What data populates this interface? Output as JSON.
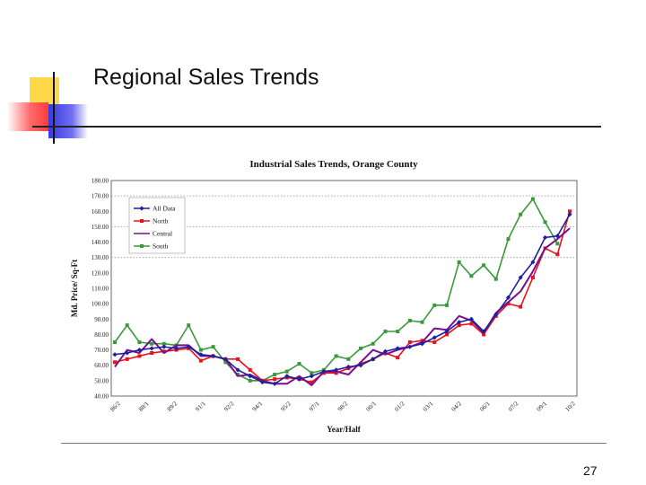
{
  "slide": {
    "title": "Regional Sales Trends",
    "page_number": "27"
  },
  "chart_data": {
    "type": "line",
    "title": "Industrial Sales Trends, Orange County",
    "xlabel": "Year/Half",
    "ylabel": "Md. Price/ Sq-Ft",
    "ylim": [
      40,
      180
    ],
    "yticks": [
      "180.00",
      "170.00",
      "160.00",
      "150.00",
      "140.00",
      "130.00",
      "120.00",
      "110.00",
      "100.00",
      "90.00",
      "80.00",
      "70.00",
      "60.00",
      "50.00",
      "40.00"
    ],
    "x_tick_labels": [
      "86/2",
      "88/1",
      "89/2",
      "91/1",
      "92/2",
      "94/1",
      "95/2",
      "97/1",
      "98/2",
      "00/1",
      "01/2",
      "03/1",
      "04/2",
      "06/1",
      "07/2",
      "09/1",
      "10/2"
    ],
    "grid": "horizontal dotted at 130, 150, 170",
    "legend_position": "upper-left",
    "series": [
      {
        "name": "All Data",
        "color": "#1f1fa0",
        "marker": "diamond",
        "values": [
          67,
          68,
          70,
          71,
          72,
          71,
          72,
          67,
          66,
          64,
          57,
          53,
          49,
          48,
          53,
          51,
          53,
          56,
          57,
          59,
          60,
          64,
          69,
          71,
          72,
          74,
          78,
          82,
          88,
          90,
          82,
          93,
          104,
          117,
          127,
          143,
          144,
          158
        ]
      },
      {
        "name": "North",
        "color": "#e8121a",
        "marker": "square",
        "values": [
          62,
          64,
          66,
          68,
          69,
          70,
          71,
          63,
          66,
          64,
          64,
          57,
          50,
          51,
          52,
          51,
          49,
          55,
          55,
          58,
          61,
          64,
          68,
          65,
          75,
          76,
          75,
          80,
          86,
          87,
          80,
          92,
          100,
          98,
          117,
          136,
          132,
          160
        ]
      },
      {
        "name": "Central",
        "color": "#7a0f8f",
        "marker": "none",
        "values": [
          59,
          70,
          68,
          77,
          68,
          73,
          73,
          66,
          66,
          64,
          53,
          54,
          50,
          48,
          48,
          53,
          47,
          56,
          56,
          54,
          62,
          70,
          67,
          70,
          72,
          75,
          84,
          83,
          92,
          89,
          81,
          94,
          101,
          108,
          121,
          136,
          142,
          149
        ]
      },
      {
        "name": "South",
        "color": "#3a9a3a",
        "marker": "square",
        "values": [
          75,
          86,
          75,
          74,
          74,
          73,
          86,
          70,
          72,
          62,
          54,
          50,
          50,
          54,
          56,
          61,
          55,
          57,
          66,
          64,
          71,
          74,
          82,
          82,
          89,
          88,
          99,
          99,
          127,
          118,
          125,
          116,
          142,
          158,
          168,
          153,
          139
        ]
      }
    ]
  }
}
